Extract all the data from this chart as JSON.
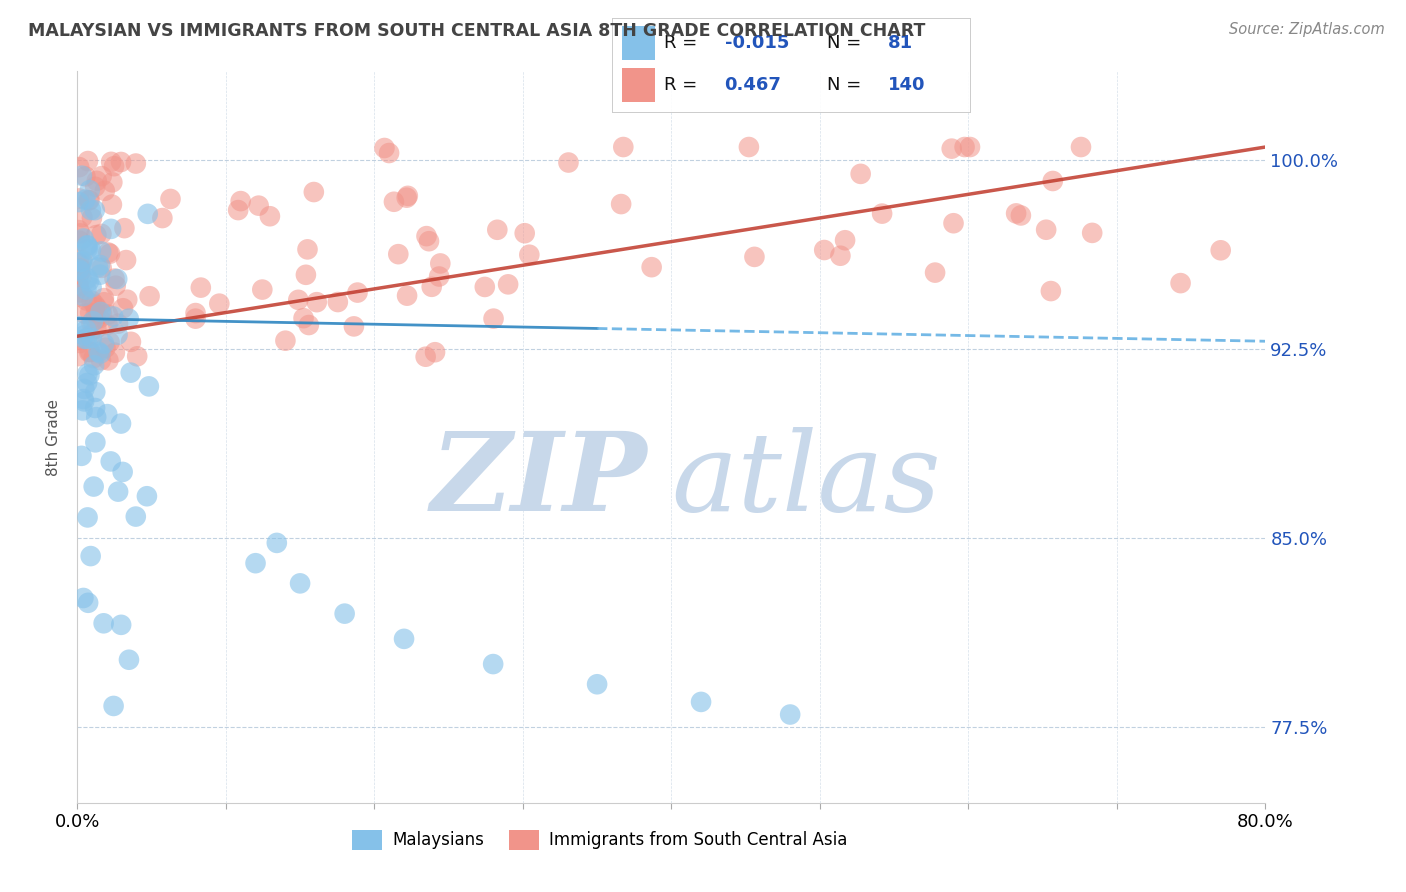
{
  "title": "MALAYSIAN VS IMMIGRANTS FROM SOUTH CENTRAL ASIA 8TH GRADE CORRELATION CHART",
  "source_text": "Source: ZipAtlas.com",
  "ylabel": "8th Grade",
  "xmin": 0.0,
  "xmax": 0.8,
  "ymin": 0.745,
  "ymax": 1.035,
  "yticks": [
    0.775,
    0.85,
    0.925,
    1.0
  ],
  "ytick_labels": [
    "77.5%",
    "85.0%",
    "92.5%",
    "100.0%"
  ],
  "grid_yticks": [
    0.775,
    0.85,
    0.925,
    1.0
  ],
  "xticks": [
    0.0,
    0.1,
    0.2,
    0.3,
    0.4,
    0.5,
    0.6,
    0.7,
    0.8
  ],
  "xtick_labels": [
    "0.0%",
    "",
    "",
    "",
    "",
    "",
    "",
    "",
    "80.0%"
  ],
  "legend_r1": "-0.015",
  "legend_n1": "81",
  "legend_r2": "0.467",
  "legend_n2": "140",
  "color_blue": "#85C1E9",
  "color_pink": "#F1948A",
  "color_blue_edge": "#7FB3D3",
  "color_pink_edge": "#E8A0A0",
  "trend_blue_solid": "#2E86C1",
  "trend_blue_dash": "#5DADE2",
  "trend_pink": "#C0392B",
  "watermark_zip_color": "#C8D8EA",
  "watermark_atlas_color": "#C8D8EA",
  "background_color": "#FFFFFF",
  "grid_color": "#BBCCDD",
  "title_color": "#444444",
  "source_color": "#888888",
  "rn_color": "#2255BB",
  "legend_box_color": "#E8EEF4"
}
